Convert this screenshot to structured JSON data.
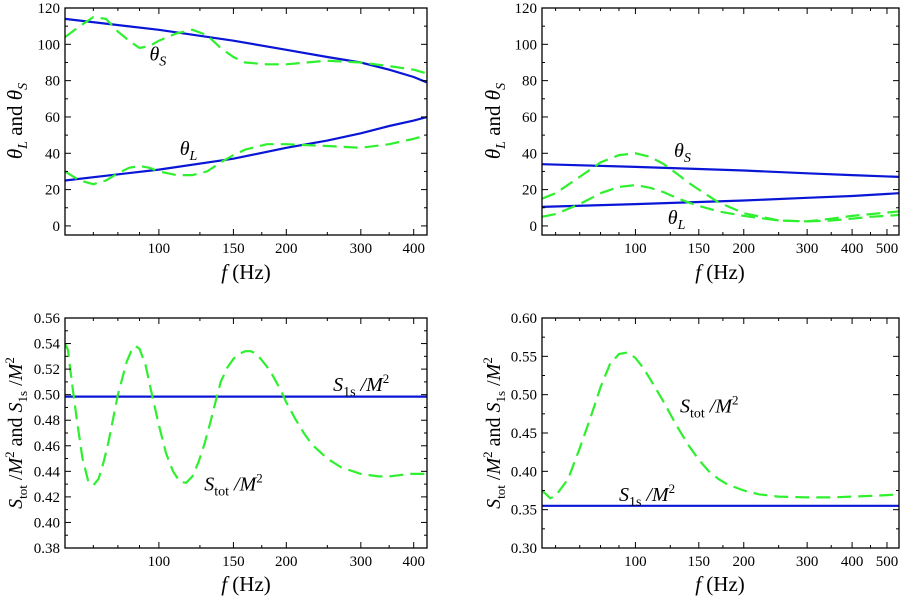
{
  "colors": {
    "solid": "#0a16d6",
    "dashed": "#2ef02e",
    "frame": "#000000"
  },
  "chart_data": [
    {
      "type": "line",
      "panel": "top-left",
      "xscale": "log",
      "xlim": [
        60,
        430
      ],
      "ylim": [
        -5,
        120
      ],
      "xticks": [
        100,
        150,
        200,
        300,
        400
      ],
      "xtick_labels": [
        "100",
        "150",
        "200",
        "300",
        "400"
      ],
      "yticks": [
        0,
        20,
        40,
        60,
        80,
        100,
        120
      ],
      "ytick_labels": [
        "0",
        "20",
        "40",
        "60",
        "80",
        "100",
        "120"
      ],
      "xlabel": {
        "italic": "f",
        "rest": " (Hz)"
      },
      "ylabel": "θL  and  θS",
      "series": [
        {
          "name": "θS model",
          "style": "solid",
          "x": [
            60,
            100,
            150,
            200,
            250,
            300,
            350,
            400,
            430
          ],
          "y": [
            114,
            108,
            102,
            97,
            93,
            90,
            86,
            82,
            79
          ]
        },
        {
          "name": "θL model",
          "style": "solid",
          "x": [
            60,
            100,
            150,
            200,
            250,
            300,
            350,
            400,
            430
          ],
          "y": [
            25,
            31,
            37,
            43,
            47,
            51,
            55,
            58,
            60
          ]
        },
        {
          "name": "θS numerical",
          "style": "dashed",
          "x": [
            60,
            65,
            70,
            75,
            80,
            85,
            90,
            95,
            100,
            110,
            120,
            130,
            140,
            150,
            160,
            180,
            200,
            250,
            300,
            350,
            400,
            430
          ],
          "y": [
            104,
            110,
            115,
            114,
            107,
            102,
            98,
            99,
            102,
            106,
            108,
            105,
            98,
            93,
            90,
            89,
            89,
            91,
            90,
            88,
            86,
            84
          ]
        },
        {
          "name": "θL numerical",
          "style": "dashed",
          "x": [
            60,
            65,
            70,
            75,
            80,
            85,
            90,
            95,
            100,
            110,
            120,
            130,
            140,
            150,
            160,
            180,
            200,
            250,
            300,
            350,
            400,
            430
          ],
          "y": [
            30,
            25,
            23,
            25,
            29,
            32,
            33,
            32,
            30,
            28,
            28,
            30,
            35,
            39,
            42,
            45,
            45,
            44,
            43,
            45,
            48,
            50
          ]
        }
      ],
      "annotations": [
        {
          "base": "θ",
          "sub": "S",
          "x": 95,
          "y": 91
        },
        {
          "base": "θ",
          "sub": "L",
          "x": 112,
          "y": 39
        }
      ]
    },
    {
      "type": "line",
      "panel": "top-right",
      "xscale": "log",
      "xlim": [
        55,
        540
      ],
      "ylim": [
        -5,
        120
      ],
      "xticks": [
        100,
        150,
        200,
        300,
        400,
        500
      ],
      "xtick_labels": [
        "100",
        "150",
        "200",
        "300",
        "400",
        "500"
      ],
      "yticks": [
        0,
        20,
        40,
        60,
        80,
        100,
        120
      ],
      "ytick_labels": [
        "0",
        "20",
        "40",
        "60",
        "80",
        "100",
        "120"
      ],
      "xlabel": {
        "italic": "f",
        "rest": " (Hz)"
      },
      "ylabel": "θL  and  θS",
      "series": [
        {
          "name": "θS model",
          "style": "solid",
          "x": [
            55,
            100,
            200,
            300,
            400,
            540
          ],
          "y": [
            34,
            32.5,
            30.5,
            29,
            28,
            27
          ]
        },
        {
          "name": "θL model",
          "style": "solid",
          "x": [
            55,
            100,
            200,
            300,
            400,
            540
          ],
          "y": [
            10.5,
            12,
            14,
            15.5,
            16.5,
            18
          ]
        },
        {
          "name": "θS numerical",
          "style": "dashed",
          "x": [
            55,
            60,
            70,
            80,
            90,
            100,
            110,
            120,
            130,
            140,
            150,
            170,
            200,
            250,
            300,
            350,
            400,
            450,
            540
          ],
          "y": [
            15,
            18,
            27,
            35,
            39,
            40,
            38,
            34,
            29,
            24,
            20,
            13,
            7,
            3,
            2.5,
            3,
            4,
            5,
            6
          ]
        },
        {
          "name": "θL numerical",
          "style": "dashed",
          "x": [
            55,
            60,
            70,
            80,
            90,
            100,
            110,
            120,
            130,
            140,
            150,
            170,
            200,
            250,
            300,
            350,
            400,
            450,
            540
          ],
          "y": [
            5,
            6.5,
            12,
            18,
            21.5,
            22.5,
            21,
            18.5,
            15.5,
            13,
            11,
            8,
            5.5,
            3,
            2.5,
            4,
            5.5,
            6.5,
            8
          ]
        }
      ],
      "annotations": [
        {
          "base": "θ",
          "sub": "S",
          "x": 128,
          "y": 38
        },
        {
          "base": "θ",
          "sub": "L",
          "x": 123,
          "y": 1
        }
      ]
    },
    {
      "type": "line",
      "panel": "bottom-left",
      "xscale": "log",
      "xlim": [
        60,
        430
      ],
      "ylim": [
        0.38,
        0.56
      ],
      "xticks": [
        100,
        150,
        200,
        300,
        400
      ],
      "xtick_labels": [
        "100",
        "150",
        "200",
        "300",
        "400"
      ],
      "yticks": [
        0.38,
        0.4,
        0.42,
        0.44,
        0.46,
        0.48,
        0.5,
        0.52,
        0.54,
        0.56
      ],
      "ytick_labels": [
        "0.38",
        "0.40",
        "0.42",
        "0.44",
        "0.46",
        "0.48",
        "0.50",
        "0.52",
        "0.54",
        "0.56"
      ],
      "xlabel": {
        "italic": "f",
        "rest": " (Hz)"
      },
      "ylabel": "Stot/M² and S1s/M²",
      "series": [
        {
          "name": "S1s/M²",
          "style": "solid",
          "x": [
            60,
            430
          ],
          "y": [
            0.4985,
            0.4985
          ]
        },
        {
          "name": "Stot/M²",
          "style": "dashed",
          "x": [
            60,
            61,
            62,
            64,
            66,
            68,
            70,
            72,
            74,
            76,
            80,
            84,
            86,
            88,
            90,
            93,
            96,
            100,
            104,
            108,
            112,
            116,
            120,
            124,
            128,
            132,
            136,
            140,
            145,
            150,
            155,
            160,
            165,
            170,
            175,
            180,
            185,
            190,
            195,
            200,
            210,
            220,
            230,
            250,
            270,
            300,
            330,
            350,
            370,
            390,
            410,
            430
          ],
          "y": [
            0.54,
            0.535,
            0.515,
            0.48,
            0.45,
            0.433,
            0.429,
            0.434,
            0.447,
            0.463,
            0.5,
            0.526,
            0.534,
            0.538,
            0.536,
            0.523,
            0.502,
            0.476,
            0.454,
            0.44,
            0.432,
            0.431,
            0.436,
            0.447,
            0.461,
            0.477,
            0.494,
            0.51,
            0.521,
            0.528,
            0.532,
            0.534,
            0.534,
            0.532,
            0.527,
            0.522,
            0.516,
            0.509,
            0.502,
            0.494,
            0.481,
            0.47,
            0.461,
            0.45,
            0.443,
            0.438,
            0.436,
            0.436,
            0.437,
            0.438,
            0.438,
            0.438
          ]
        }
      ],
      "annotations": [
        {
          "label": "S1s/M²",
          "base": "S",
          "sub": "1s",
          "tail": " /M",
          "sup": "2",
          "x": 258,
          "y": 0.503
        },
        {
          "label": "Stot/M²",
          "base": "S",
          "sub": "tot",
          "tail": " /M",
          "sup": "2",
          "x": 128,
          "y": 0.425
        }
      ]
    },
    {
      "type": "line",
      "panel": "bottom-right",
      "xscale": "log",
      "xlim": [
        55,
        540
      ],
      "ylim": [
        0.3,
        0.6
      ],
      "xticks": [
        100,
        150,
        200,
        300,
        400,
        500
      ],
      "xtick_labels": [
        "100",
        "150",
        "200",
        "300",
        "400",
        "500"
      ],
      "yticks": [
        0.3,
        0.35,
        0.4,
        0.45,
        0.5,
        0.55,
        0.6
      ],
      "ytick_labels": [
        "0.30",
        "0.35",
        "0.40",
        "0.45",
        "0.50",
        "0.55",
        "0.60"
      ],
      "xlabel": {
        "italic": "f",
        "rest": " (Hz)"
      },
      "ylabel": "Stot/M² and S1s/M²",
      "series": [
        {
          "name": "S1s/M²",
          "style": "solid",
          "x": [
            55,
            540
          ],
          "y": [
            0.355,
            0.355
          ]
        },
        {
          "name": "Stot/M²",
          "style": "dashed",
          "x": [
            55,
            58,
            60,
            65,
            70,
            75,
            80,
            85,
            90,
            95,
            100,
            105,
            110,
            120,
            130,
            140,
            150,
            160,
            170,
            180,
            200,
            220,
            250,
            300,
            350,
            400,
            450,
            500,
            540
          ],
          "y": [
            0.375,
            0.365,
            0.368,
            0.39,
            0.43,
            0.47,
            0.51,
            0.54,
            0.553,
            0.555,
            0.548,
            0.535,
            0.52,
            0.49,
            0.46,
            0.435,
            0.415,
            0.4,
            0.39,
            0.383,
            0.375,
            0.37,
            0.367,
            0.366,
            0.366,
            0.367,
            0.368,
            0.369,
            0.37
          ]
        }
      ],
      "annotations": [
        {
          "label": "Stot/M²",
          "base": "S",
          "sub": "tot",
          "tail": " /M",
          "sup": "2",
          "x": 133,
          "y": 0.477
        },
        {
          "label": "S1s/M²",
          "base": "S",
          "sub": "1s",
          "tail": " /M",
          "sup": "2",
          "x": 90,
          "y": 0.361
        }
      ]
    }
  ]
}
